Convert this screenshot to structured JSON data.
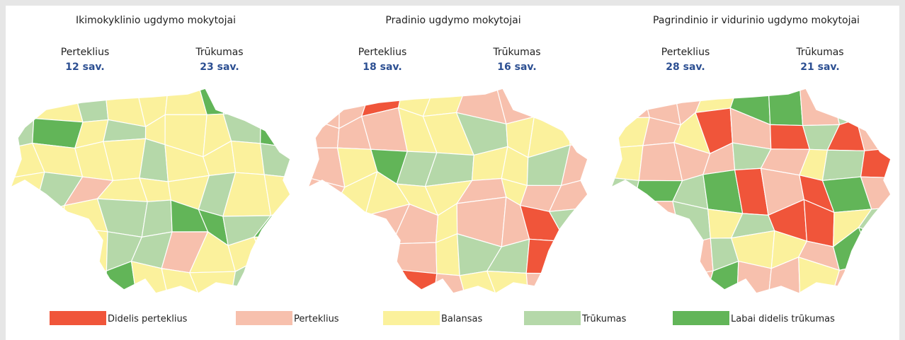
{
  "maps": [
    {
      "title": "Ikimokyklinio ugdymo mokytojai",
      "surplus_label": "Perteklius",
      "surplus_value": "12 sav.",
      "shortage_label": "Trūkumas",
      "shortage_value": "23 sav."
    },
    {
      "title": "Pradinio ugdymo mokytojai",
      "surplus_label": "Perteklius",
      "surplus_value": "18 sav.",
      "shortage_label": "Trūkumas",
      "shortage_value": "16 sav."
    },
    {
      "title": "Pagrindinio ir vidurinio ugdymo mokytojai",
      "surplus_label": "Perteklius",
      "surplus_value": "28 sav.",
      "shortage_label": "Trūkumas",
      "shortage_value": "21 sav."
    }
  ],
  "legend": [
    {
      "label": "Didelis perteklius",
      "color": "#f0553a"
    },
    {
      "label": "Perteklius",
      "color": "#f7c0ad"
    },
    {
      "label": "Balansas",
      "color": "#fbf19c"
    },
    {
      "label": "Trūkumas",
      "color": "#b5d8a9"
    },
    {
      "label": "Labai didelis trūkumas",
      "color": "#62b558"
    }
  ]
}
